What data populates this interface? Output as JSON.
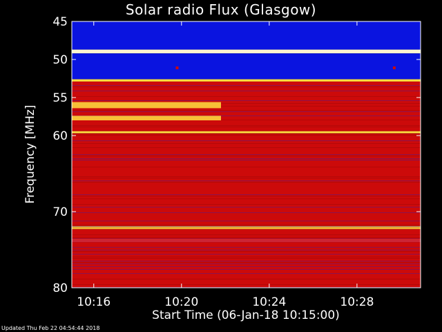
{
  "chart_data": {
    "type": "heatmap",
    "title": "Solar radio Flux (Glasgow)",
    "ylabel": "Frequency [MHz]",
    "xlabel": "Start Time (06-Jan-18 10:15:00)",
    "ylim": [
      45,
      80
    ],
    "y_inverted": true,
    "yticks": [
      45,
      50,
      55,
      60,
      70,
      80
    ],
    "xlim_minutes_after_start": [
      0,
      15.9
    ],
    "xticks": [
      {
        "label": "10:16",
        "minute": 1
      },
      {
        "label": "10:20",
        "minute": 5
      },
      {
        "label": "10:24",
        "minute": 9
      },
      {
        "label": "10:28",
        "minute": 13
      }
    ],
    "bands": [
      {
        "from": 45.0,
        "to": 48.7,
        "level": "blue"
      },
      {
        "from": 48.7,
        "to": 49.2,
        "level": "white"
      },
      {
        "from": 49.2,
        "to": 52.6,
        "level": "blue"
      },
      {
        "from": 52.6,
        "to": 52.9,
        "level": "yellow"
      },
      {
        "from": 52.9,
        "to": 59.4,
        "level": "red"
      },
      {
        "from": 59.4,
        "to": 59.7,
        "level": "yellow"
      },
      {
        "from": 59.7,
        "to": 71.9,
        "level": "red"
      },
      {
        "from": 71.9,
        "to": 72.3,
        "level": "yellow"
      },
      {
        "from": 72.3,
        "to": 73.6,
        "level": "red"
      },
      {
        "from": 73.6,
        "to": 74.0,
        "level": "bright-red"
      },
      {
        "from": 74.0,
        "to": 80.0,
        "level": "red"
      }
    ],
    "features": [
      {
        "kind": "burst",
        "freq_from": 55.6,
        "freq_to": 56.4,
        "minute_from": 0,
        "minute_to": 6.8,
        "level": "yellow"
      },
      {
        "kind": "burst",
        "freq_from": 57.4,
        "freq_to": 58.0,
        "minute_from": 0,
        "minute_to": 6.8,
        "level": "yellow"
      },
      {
        "kind": "spot",
        "freq": 51.1,
        "minute": 4.8,
        "level": "red"
      },
      {
        "kind": "spot",
        "freq": 51.1,
        "minute": 14.7,
        "level": "red"
      }
    ]
  },
  "footer": {
    "updated": "Updated Thu Feb 22 04:54:44 2018"
  },
  "colors": {
    "blue": "#0a14e0",
    "white": "#fff4d0",
    "yellow": "#ffe040",
    "red": "#cc0a0a",
    "bright-red": "#ff2a10",
    "purple": "#5a1a8a"
  }
}
